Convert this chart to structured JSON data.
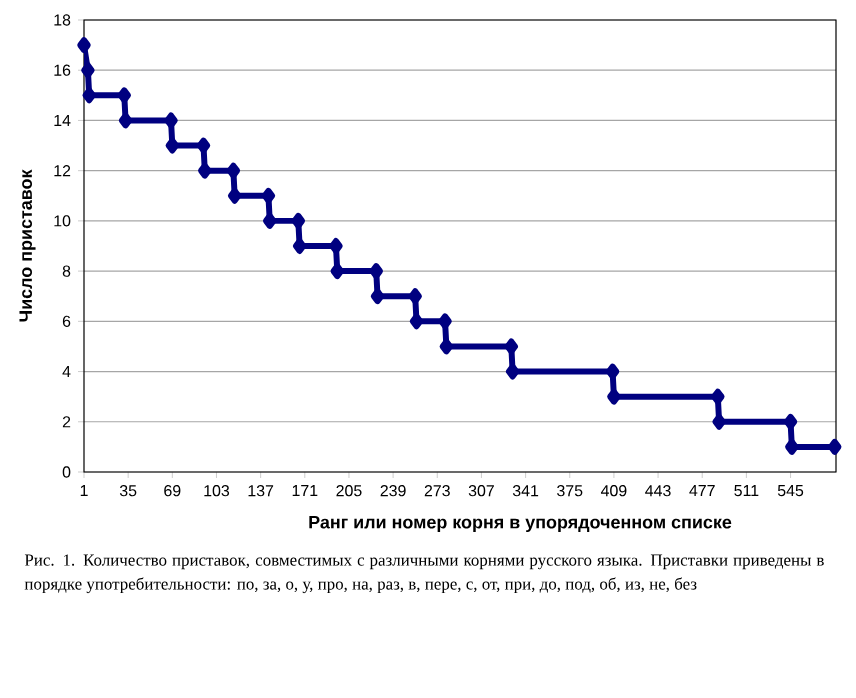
{
  "chart_data": {
    "type": "line",
    "xlabel": "Ранг или номер корня в упорядоченном списке",
    "ylabel": "Число приставок",
    "annotations": [
      "Рис. 1. Количество приставок, совместимых с различными корнями русского языка. Приставки приведены в порядке употребительности: по, за, о, у, про, на, раз, в, пере, с, от, при, до, под, об, из, не, без"
    ],
    "x": [
      1,
      4,
      5,
      32,
      33,
      68,
      69,
      93,
      94,
      116,
      117,
      143,
      144,
      166,
      167,
      195,
      196,
      226,
      227,
      256,
      257,
      279,
      280,
      330,
      331,
      408,
      409,
      489,
      490,
      545,
      546,
      579
    ],
    "series": [
      {
        "color": "#000080",
        "values": [
          17,
          16,
          15,
          15,
          14,
          14,
          13,
          13,
          12,
          12,
          11,
          11,
          10,
          10,
          9,
          9,
          8,
          8,
          7,
          7,
          6,
          6,
          5,
          5,
          4,
          4,
          3,
          3,
          2,
          2,
          1,
          1
        ]
      }
    ],
    "xlim": [
      1,
      580
    ],
    "ylim": [
      0,
      18
    ],
    "xticks": [
      1,
      35,
      69,
      103,
      137,
      171,
      205,
      239,
      273,
      307,
      341,
      375,
      409,
      443,
      477,
      511,
      545
    ],
    "yticks": [
      0,
      2,
      4,
      6,
      8,
      10,
      12,
      14,
      16,
      18
    ],
    "grid": "y",
    "marker": "diamond",
    "line_style": "solid"
  }
}
